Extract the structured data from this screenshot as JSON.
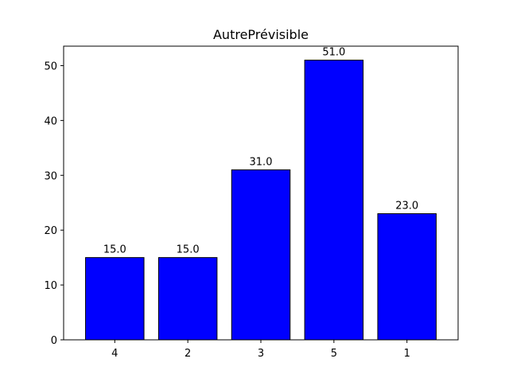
{
  "chart_data": {
    "type": "bar",
    "title": "AutrePrévisible",
    "xlabel": "",
    "ylabel": "",
    "categories": [
      "4",
      "2",
      "3",
      "5",
      "1"
    ],
    "values": [
      15,
      15,
      31,
      51,
      23
    ],
    "data_labels": [
      "15.0",
      "15.0",
      "31.0",
      "51.0",
      "23.0"
    ],
    "ylim": [
      0,
      53.55
    ],
    "yticks": [
      0,
      10,
      20,
      30,
      40,
      50
    ],
    "bar_color": "#0000ff",
    "bar_edge_color": "#000000",
    "grid": false,
    "legend": false
  }
}
